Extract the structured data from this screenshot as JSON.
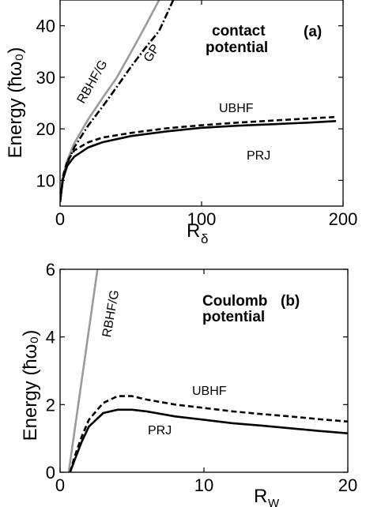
{
  "chart_data": [
    {
      "type": "line",
      "panel_tag": "(a)",
      "title_lines": [
        "contact",
        "potential"
      ],
      "xlabel_main": "R",
      "xlabel_sub": "δ",
      "ylabel": "Energy (ħω₀)",
      "xlim": [
        0,
        200
      ],
      "ylim": [
        5,
        45
      ],
      "xticks": [
        0,
        100,
        200
      ],
      "yticks": [
        10,
        20,
        30,
        40
      ],
      "series": [
        {
          "name": "RBHF/G",
          "style": "solid",
          "color": "#9b9b9b",
          "x": [
            0,
            2,
            5,
            10,
            20,
            30,
            40,
            50,
            60,
            70
          ],
          "y": [
            5.8,
            10.5,
            13.8,
            17.2,
            21.9,
            26.0,
            29.9,
            34.8,
            39.8,
            45
          ]
        },
        {
          "name": "GP",
          "style": "dashdot",
          "color": "#000000",
          "x": [
            0,
            2,
            5,
            10,
            20,
            30,
            40,
            50,
            60,
            70,
            80
          ],
          "y": [
            5.8,
            10.3,
            13.3,
            16.4,
            20.7,
            24.3,
            28.1,
            32.0,
            35.6,
            39.0,
            45
          ]
        },
        {
          "name": "UBHF",
          "style": "dashed",
          "color": "#000000",
          "x": [
            0,
            2,
            5,
            10,
            20,
            30,
            50,
            75,
            100,
            125,
            150,
            175,
            195
          ],
          "y": [
            5.8,
            10.8,
            13.7,
            15.8,
            17.4,
            18.3,
            19.2,
            20.1,
            20.7,
            21.2,
            21.6,
            22.0,
            22.3
          ]
        },
        {
          "name": "PRJ",
          "style": "solid",
          "color": "#000000",
          "x": [
            0,
            2,
            5,
            10,
            20,
            30,
            50,
            75,
            100,
            125,
            150,
            175,
            195
          ],
          "y": [
            5.8,
            10.2,
            12.8,
            14.6,
            16.4,
            17.4,
            18.6,
            19.5,
            20.2,
            20.6,
            20.9,
            21.2,
            21.5
          ]
        }
      ]
    },
    {
      "type": "line",
      "panel_tag": "(b)",
      "title_lines": [
        "Coulomb",
        "potential"
      ],
      "xlabel_main": "R",
      "xlabel_sub": "W",
      "ylabel": "Energy (ħω₀)",
      "xlim": [
        0,
        20
      ],
      "ylim": [
        0,
        6
      ],
      "xticks": [
        0,
        10,
        20
      ],
      "yticks": [
        0,
        2,
        4,
        6
      ],
      "series": [
        {
          "name": "RBHF/G",
          "style": "solid",
          "color": "#9b9b9b",
          "x": [
            0.6,
            2.6
          ],
          "y": [
            0,
            6
          ]
        },
        {
          "name": "UBHF",
          "style": "dashed",
          "color": "#000000",
          "x": [
            0.7,
            1.0,
            1.5,
            2.0,
            3.0,
            4.0,
            5.0,
            6.0,
            8.0,
            10.0,
            12.0,
            14.0,
            16.0,
            18.0,
            20.0
          ],
          "y": [
            0,
            0.45,
            1.05,
            1.55,
            2.05,
            2.25,
            2.25,
            2.15,
            2.0,
            1.9,
            1.8,
            1.72,
            1.65,
            1.57,
            1.5
          ]
        },
        {
          "name": "PRJ",
          "style": "solid",
          "color": "#000000",
          "x": [
            0.7,
            1.0,
            1.5,
            2.0,
            3.0,
            4.0,
            5.0,
            6.0,
            8.0,
            10.0,
            12.0,
            14.0,
            16.0,
            18.0,
            20.0
          ],
          "y": [
            0,
            0.35,
            0.9,
            1.35,
            1.75,
            1.85,
            1.85,
            1.8,
            1.65,
            1.55,
            1.45,
            1.38,
            1.3,
            1.22,
            1.15
          ]
        }
      ]
    }
  ]
}
